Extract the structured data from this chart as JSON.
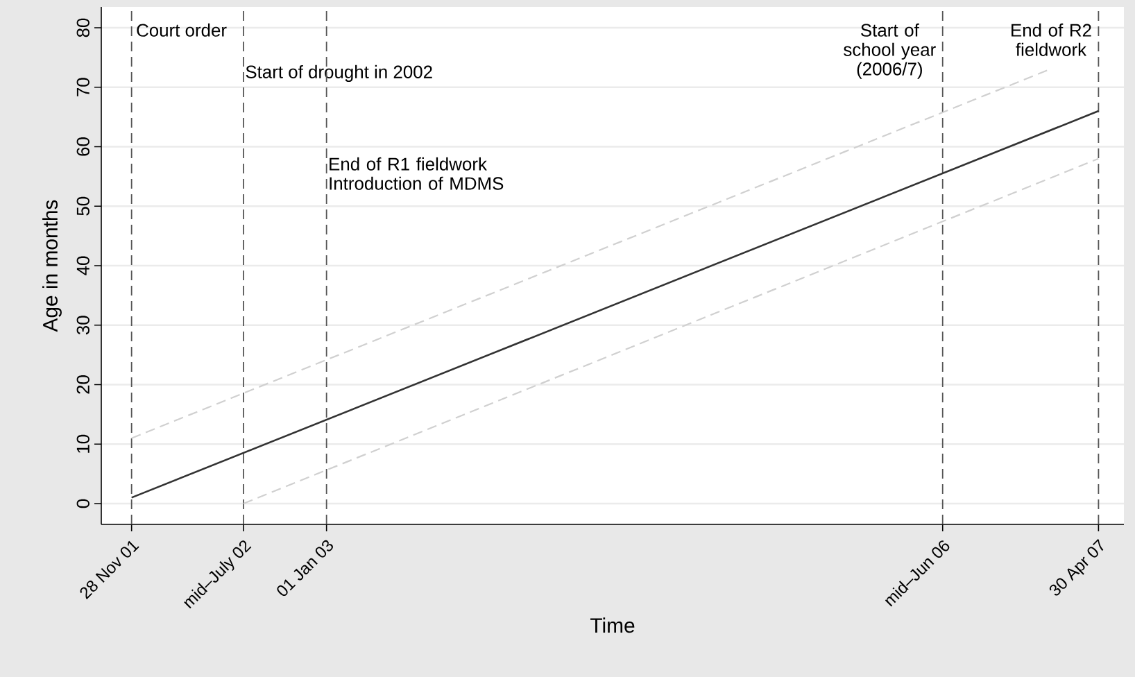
{
  "chart_data": {
    "type": "line",
    "xlabel": "Time",
    "ylabel": "Age in months",
    "xlim": [
      "2001-09-27",
      "2007-06-21"
    ],
    "ylim": [
      -3.5,
      83.5
    ],
    "xticks": [
      {
        "value": "2001-11-28",
        "label": "28 Nov 01"
      },
      {
        "value": "2002-07-15",
        "label": "mid–July 02"
      },
      {
        "value": "2003-01-01",
        "label": "01 Jan 03"
      },
      {
        "value": "2006-06-15",
        "label": "mid–Jun 06"
      },
      {
        "value": "2007-04-30",
        "label": "30 Apr 07"
      }
    ],
    "yticks": [
      0,
      10,
      20,
      30,
      40,
      50,
      60,
      70,
      80
    ],
    "grid": "y",
    "marker": "none",
    "series": [
      {
        "x": [
          "2001-11-28",
          "2007-04-30"
        ],
        "values": [
          1,
          66
        ],
        "color": "#333333",
        "line_style": "solid"
      },
      {
        "x": [
          "2001-11-28",
          "2007-01-20"
        ],
        "values": [
          11,
          73
        ],
        "color": "#d0d0d0",
        "line_style": "dashed"
      },
      {
        "x": [
          "2002-07-15",
          "2007-04-30"
        ],
        "values": [
          0,
          58
        ],
        "color": "#d0d0d0",
        "line_style": "dashed"
      }
    ],
    "ref_lines": [
      {
        "axis": "x",
        "value": "2001-11-28",
        "label": "Court order",
        "color": "#555555",
        "line_style": "dashed"
      },
      {
        "axis": "x",
        "value": "2002-07-15",
        "label": "Start of drought in 2002",
        "color": "#555555",
        "line_style": "dashed"
      },
      {
        "axis": "x",
        "value": "2003-01-01",
        "label": "End of R1 fieldwork Introduction of MDMS",
        "color": "#555555",
        "line_style": "dashed"
      },
      {
        "axis": "x",
        "value": "2006-06-15",
        "label": "Start of school year (2006/7)",
        "color": "#555555",
        "line_style": "dashed"
      },
      {
        "axis": "x",
        "value": "2007-04-30",
        "label": "End of R2 fieldwork",
        "color": "#555555",
        "line_style": "dashed"
      }
    ]
  }
}
